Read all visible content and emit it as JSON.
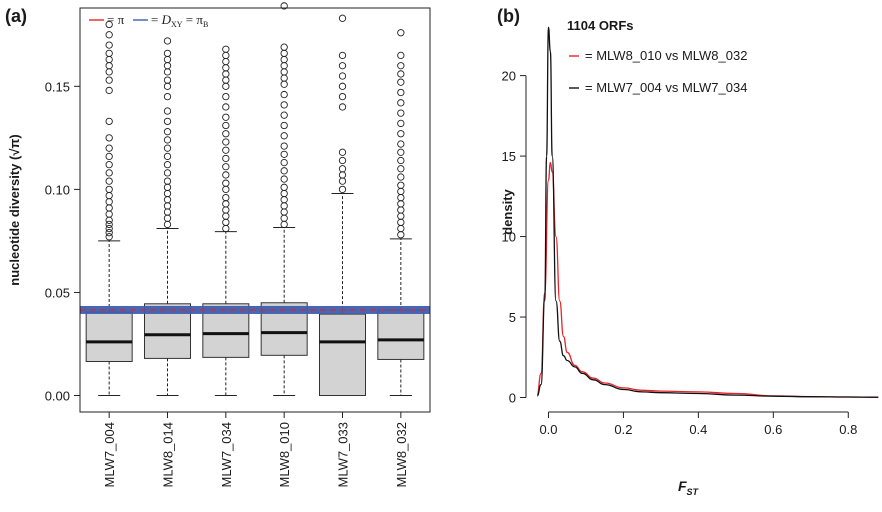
{
  "chart_data": [
    {
      "type": "box",
      "panel_label": "(a)",
      "ylabel": "nucleotide diversity (√π)",
      "ylim": [
        -0.008,
        0.188
      ],
      "yticks": [
        "0.00",
        "0.05",
        "0.10",
        "0.15"
      ],
      "ytick_values": [
        0,
        0.05,
        0.1,
        0.15
      ],
      "categories": [
        "MLW7_004",
        "MLW8_014",
        "MLW7_034",
        "MLW8_010",
        "MLW7_033",
        "MLW8_032"
      ],
      "boxes": [
        {
          "q1": 0.0165,
          "median": 0.026,
          "q3": 0.0405,
          "whisker_low": 0.0,
          "whisker_high": 0.075
        },
        {
          "q1": 0.018,
          "median": 0.0295,
          "q3": 0.0445,
          "whisker_low": 0.0,
          "whisker_high": 0.081
        },
        {
          "q1": 0.0185,
          "median": 0.03,
          "q3": 0.0445,
          "whisker_low": 0.0,
          "whisker_high": 0.0795
        },
        {
          "q1": 0.0195,
          "median": 0.0305,
          "q3": 0.045,
          "whisker_low": 0.0,
          "whisker_high": 0.0815
        },
        {
          "q1": 0.0,
          "median": 0.026,
          "q3": 0.0395,
          "whisker_low": 0.0,
          "whisker_high": 0.098
        },
        {
          "q1": 0.0175,
          "median": 0.027,
          "q3": 0.0415,
          "whisker_low": 0.0,
          "whisker_high": 0.076
        }
      ],
      "outliers": [
        [
          0.077,
          0.079,
          0.081,
          0.083,
          0.085,
          0.088,
          0.091,
          0.094,
          0.097,
          0.1,
          0.104,
          0.108,
          0.112,
          0.116,
          0.12,
          0.125,
          0.133,
          0.148,
          0.153,
          0.157,
          0.16,
          0.163,
          0.166,
          0.17,
          0.175,
          0.18
        ],
        [
          0.083,
          0.086,
          0.089,
          0.092,
          0.095,
          0.098,
          0.101,
          0.104,
          0.108,
          0.112,
          0.116,
          0.12,
          0.124,
          0.128,
          0.133,
          0.138,
          0.145,
          0.15,
          0.153,
          0.157,
          0.16,
          0.163,
          0.166,
          0.172
        ],
        [
          0.081,
          0.084,
          0.087,
          0.09,
          0.093,
          0.096,
          0.1,
          0.103,
          0.107,
          0.111,
          0.115,
          0.119,
          0.123,
          0.127,
          0.131,
          0.135,
          0.14,
          0.145,
          0.15,
          0.153,
          0.156,
          0.159,
          0.162,
          0.165,
          0.168
        ],
        [
          0.083,
          0.086,
          0.089,
          0.092,
          0.095,
          0.098,
          0.101,
          0.105,
          0.109,
          0.113,
          0.117,
          0.121,
          0.126,
          0.131,
          0.136,
          0.141,
          0.146,
          0.151,
          0.154,
          0.157,
          0.16,
          0.163,
          0.166,
          0.169,
          0.189
        ],
        [
          0.1,
          0.104,
          0.107,
          0.11,
          0.114,
          0.118,
          0.14,
          0.145,
          0.15,
          0.155,
          0.16,
          0.165,
          0.183
        ],
        [
          0.078,
          0.081,
          0.084,
          0.087,
          0.09,
          0.093,
          0.096,
          0.099,
          0.102,
          0.106,
          0.11,
          0.114,
          0.118,
          0.122,
          0.127,
          0.132,
          0.137,
          0.142,
          0.147,
          0.152,
          0.156,
          0.16,
          0.165,
          0.176
        ]
      ],
      "reference_lines": [
        {
          "legend": "= π",
          "value": 0.0415,
          "color": "#e8232b",
          "style": "dashed"
        },
        {
          "legend": "= D_XY = π_B",
          "value": 0.0415,
          "color": "#3b5fb0",
          "style": "band"
        }
      ],
      "box_fill": "#d3d3d3",
      "legend_placement": "top-left"
    },
    {
      "type": "line",
      "panel_label": "(b)",
      "title": "1104 ORFs",
      "xlabel": "F_ST",
      "ylabel": "density",
      "xlim": [
        -0.06,
        0.89
      ],
      "ylim": [
        -0.9,
        24.2
      ],
      "xticks": [
        "0.0",
        "0.2",
        "0.4",
        "0.6",
        "0.8"
      ],
      "xtick_values": [
        0,
        0.2,
        0.4,
        0.6,
        0.8
      ],
      "yticks": [
        "0",
        "5",
        "10",
        "15",
        "20"
      ],
      "ytick_values": [
        0,
        5,
        10,
        15,
        20
      ],
      "series": [
        {
          "name": "= MLW8_010 vs MLW8_032",
          "color": "#e8232b",
          "x": [
            -0.03,
            -0.02,
            -0.01,
            0.0,
            0.005,
            0.01,
            0.02,
            0.03,
            0.04,
            0.05,
            0.07,
            0.09,
            0.12,
            0.15,
            0.2,
            0.25,
            0.3,
            0.4,
            0.5,
            0.6,
            0.7,
            0.8,
            0.88
          ],
          "y": [
            0.2,
            1.5,
            6.5,
            13.5,
            14.6,
            14.0,
            10.0,
            6.0,
            3.8,
            2.8,
            2.0,
            1.6,
            1.2,
            0.9,
            0.6,
            0.45,
            0.4,
            0.35,
            0.25,
            0.1,
            0.05,
            0.03,
            0.02
          ]
        },
        {
          "name": "= MLW7_004 vs MLW7_034",
          "color": "#111111",
          "x": [
            -0.03,
            -0.02,
            -0.01,
            -0.005,
            0.0,
            0.005,
            0.01,
            0.02,
            0.03,
            0.04,
            0.05,
            0.07,
            0.09,
            0.12,
            0.15,
            0.2,
            0.25,
            0.3,
            0.4,
            0.5,
            0.6,
            0.7,
            0.8,
            0.88
          ],
          "y": [
            0.1,
            0.8,
            6.0,
            15.0,
            23.0,
            21.5,
            15.0,
            6.0,
            3.5,
            2.6,
            2.3,
            1.9,
            1.5,
            1.1,
            0.8,
            0.5,
            0.35,
            0.3,
            0.25,
            0.15,
            0.08,
            0.05,
            0.03,
            0.02
          ]
        }
      ],
      "legend_placement": "top-left"
    }
  ]
}
